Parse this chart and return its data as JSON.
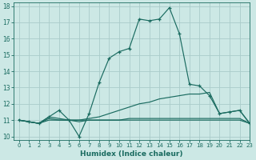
{
  "xlabel": "Humidex (Indice chaleur)",
  "bg_color": "#cce8e5",
  "grid_color": "#aaccca",
  "line_color": "#1a6b60",
  "xlim": [
    -0.5,
    23
  ],
  "ylim": [
    9.8,
    18.2
  ],
  "xticks": [
    0,
    1,
    2,
    3,
    4,
    5,
    6,
    7,
    8,
    9,
    10,
    11,
    12,
    13,
    14,
    15,
    16,
    17,
    18,
    19,
    20,
    21,
    22,
    23
  ],
  "yticks": [
    10,
    11,
    12,
    13,
    14,
    15,
    16,
    17,
    18
  ],
  "series": [
    {
      "x": [
        0,
        1,
        2,
        3,
        4,
        5,
        6,
        7,
        8,
        9,
        10,
        11,
        12,
        13,
        14,
        15,
        16,
        17,
        18,
        19,
        20,
        21,
        22,
        23
      ],
      "y": [
        11.0,
        10.9,
        10.8,
        11.2,
        11.6,
        11.0,
        10.0,
        11.4,
        13.3,
        14.8,
        15.2,
        15.4,
        17.2,
        17.1,
        17.2,
        17.9,
        16.3,
        13.2,
        13.1,
        12.5,
        11.4,
        11.5,
        11.6,
        10.8
      ],
      "marker": true
    },
    {
      "x": [
        0,
        1,
        2,
        3,
        4,
        5,
        6,
        7,
        8,
        9,
        10,
        11,
        12,
        13,
        14,
        15,
        16,
        17,
        18,
        19,
        20,
        21,
        22,
        23
      ],
      "y": [
        11.0,
        10.9,
        10.8,
        11.2,
        11.1,
        11.0,
        11.0,
        11.1,
        11.2,
        11.4,
        11.6,
        11.8,
        12.0,
        12.1,
        12.3,
        12.4,
        12.5,
        12.6,
        12.6,
        12.7,
        11.4,
        11.5,
        11.6,
        10.8
      ],
      "marker": false
    },
    {
      "x": [
        0,
        1,
        2,
        3,
        4,
        5,
        6,
        7,
        8,
        9,
        10,
        11,
        12,
        13,
        14,
        15,
        16,
        17,
        18,
        19,
        20,
        21,
        22,
        23
      ],
      "y": [
        11.0,
        10.9,
        10.8,
        11.1,
        11.0,
        11.0,
        11.0,
        11.0,
        11.0,
        11.0,
        11.0,
        11.1,
        11.1,
        11.1,
        11.1,
        11.1,
        11.1,
        11.1,
        11.1,
        11.1,
        11.1,
        11.1,
        11.1,
        10.8
      ],
      "marker": false
    },
    {
      "x": [
        0,
        1,
        2,
        3,
        4,
        5,
        6,
        7,
        8,
        9,
        10,
        11,
        12,
        13,
        14,
        15,
        16,
        17,
        18,
        19,
        20,
        21,
        22,
        23
      ],
      "y": [
        11.0,
        10.9,
        10.8,
        11.0,
        11.0,
        11.0,
        10.9,
        11.0,
        11.0,
        11.0,
        11.0,
        11.0,
        11.0,
        11.0,
        11.0,
        11.0,
        11.0,
        11.0,
        11.0,
        11.0,
        11.0,
        11.0,
        11.0,
        10.8
      ],
      "marker": false
    }
  ]
}
